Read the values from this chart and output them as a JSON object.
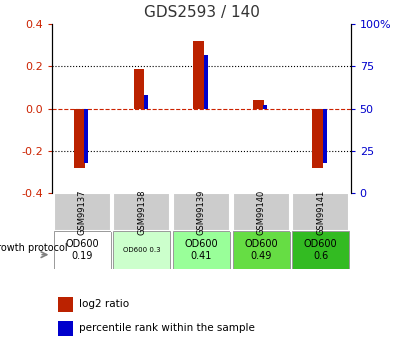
{
  "title": "GDS2593 / 140",
  "samples": [
    "GSM99137",
    "GSM99138",
    "GSM99139",
    "GSM99140",
    "GSM99141"
  ],
  "log2_ratio": [
    -0.28,
    0.19,
    0.32,
    0.04,
    -0.28
  ],
  "percentile_rank": [
    18,
    58,
    82,
    52,
    18
  ],
  "ylim": [
    -0.4,
    0.4
  ],
  "y2lim": [
    0,
    100
  ],
  "yticks": [
    -0.4,
    -0.2,
    0.0,
    0.2,
    0.4
  ],
  "y2ticks": [
    0,
    25,
    50,
    75,
    100
  ],
  "bar_color": "#bb2200",
  "pct_color": "#0000cc",
  "zero_line_color": "#cc2200",
  "grid_color": "#000000",
  "protocol_labels": [
    "OD600\n0.19",
    "OD600 0.3",
    "OD600\n0.41",
    "OD600\n0.49",
    "OD600\n0.6"
  ],
  "protocol_colors": [
    "#ffffff",
    "#ccffcc",
    "#99ff99",
    "#66dd44",
    "#33bb22"
  ],
  "protocol_small_font": [
    false,
    true,
    false,
    false,
    false
  ],
  "sample_cell_color": "#cccccc",
  "growth_protocol_label": "growth protocol",
  "legend_red": "log2 ratio",
  "legend_blue": "percentile rank within the sample",
  "title_color": "#333333",
  "left_axis_color": "#cc2200",
  "right_axis_color": "#0000cc",
  "fig_width": 4.03,
  "fig_height": 3.45,
  "dpi": 100
}
